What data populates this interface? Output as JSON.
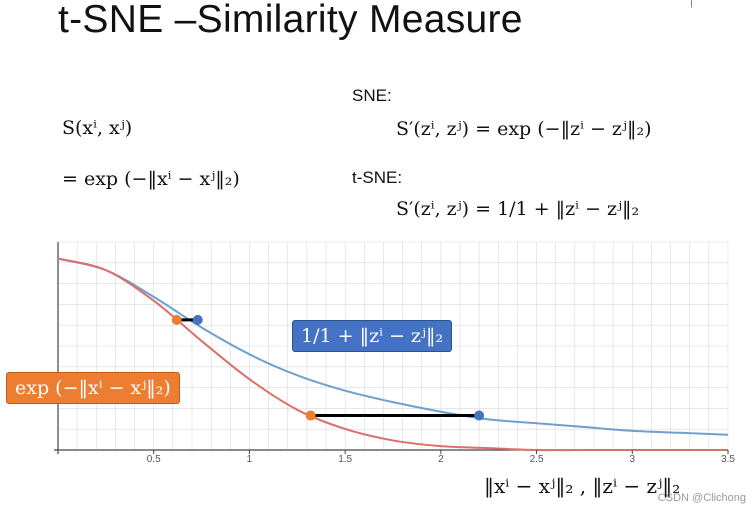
{
  "title": "t-SNE –Similarity Measure",
  "corner_text": "|",
  "formulas": {
    "s_lhs": "S(xⁱ, xʲ)",
    "s_rhs": "= exp (−‖xⁱ − xʲ‖₂)",
    "sne_label": "SNE:",
    "sne_formula": "S′(zⁱ, zʲ) = exp (−‖zⁱ − zʲ‖₂)",
    "tsne_label": "t-SNE:",
    "tsne_formula": "S′(zⁱ, zʲ) = 1/1 + ‖zⁱ − zʲ‖₂"
  },
  "callouts": {
    "blue": "1/1 + ‖zⁱ − zʲ‖₂",
    "orange": "exp (−‖xⁱ − xʲ‖₂)"
  },
  "x_axis_caption": "‖xⁱ − xʲ‖₂ , ‖zⁱ − zʲ‖₂",
  "watermark": "CSDN @Clichong",
  "colors": {
    "blue_curve": "#6f9fd0",
    "red_curve": "#d9706b",
    "orange_point": "#ed7d31",
    "blue_point": "#4472c4",
    "grid": "#d9d9d9",
    "axis": "#444444"
  },
  "chart_data": {
    "type": "line",
    "title": "",
    "xlabel": "‖xⁱ − xʲ‖₂ , ‖zⁱ − zʲ‖₂",
    "ylabel": "",
    "xlim": [
      0,
      3.5
    ],
    "ylim": [
      0,
      1
    ],
    "x_ticks": [
      "0.5",
      "1",
      "1.5",
      "2",
      "2.5",
      "3",
      "3.5"
    ],
    "x_tick_values": [
      0.5,
      1,
      1.5,
      2,
      2.5,
      3,
      3.5
    ],
    "grid": true,
    "series": [
      {
        "color": "#6f9fd0",
        "x": [
          0,
          0.25,
          0.5,
          0.75,
          1.0,
          1.25,
          1.5,
          1.75,
          2.0,
          2.25,
          2.5,
          2.75,
          3.0,
          3.25,
          3.5
        ],
        "values": [
          1.0,
          0.94,
          0.8,
          0.64,
          0.5,
          0.39,
          0.31,
          0.25,
          0.2,
          0.16,
          0.14,
          0.12,
          0.1,
          0.09,
          0.08
        ]
      },
      {
        "color": "#d9706b",
        "x": [
          0,
          0.25,
          0.5,
          0.75,
          1.0,
          1.25,
          1.5,
          1.75,
          2.0,
          2.25,
          2.5,
          2.75,
          3.0,
          3.25,
          3.5
        ],
        "values": [
          1.0,
          0.94,
          0.78,
          0.57,
          0.37,
          0.21,
          0.11,
          0.05,
          0.02,
          0.01,
          0.0,
          0.0,
          0.0,
          0.0,
          0.0
        ]
      }
    ],
    "connectors": [
      {
        "x1": 0.62,
        "x2": 0.73,
        "y": 0.68
      },
      {
        "x1": 1.32,
        "x2": 2.2,
        "y": 0.18
      }
    ],
    "points": [
      {
        "x": 0.62,
        "y": 0.68,
        "color": "#ed7d31"
      },
      {
        "x": 0.73,
        "y": 0.68,
        "color": "#4472c4"
      },
      {
        "x": 1.32,
        "y": 0.18,
        "color": "#ed7d31"
      },
      {
        "x": 2.2,
        "y": 0.18,
        "color": "#4472c4"
      }
    ]
  }
}
